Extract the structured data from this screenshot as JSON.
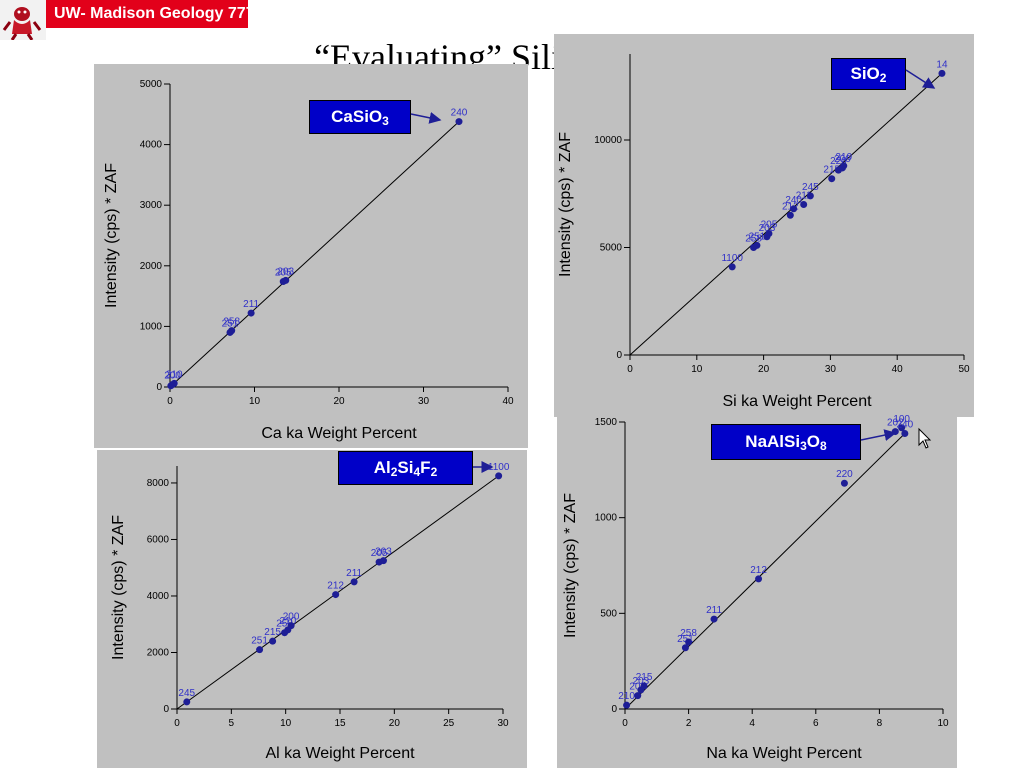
{
  "header": {
    "banner_text": "UW- Madison Geology  777",
    "logo_icon": "badger-mascot-icon"
  },
  "title": {
    "open_quote": "“",
    "word": "Evaluating",
    "close_quote": "”",
    "rest": " Silicate Standards"
  },
  "colors": {
    "panel_bg": "#c0c0c0",
    "point": "#1e1e96",
    "label": "#3030c8",
    "box": "#0000c8",
    "banner": "#e2001a"
  },
  "compounds": {
    "casio3": {
      "base": "CaSiO",
      "sub1": "3"
    },
    "sio2": {
      "base": "SiO",
      "sub1": "2"
    },
    "al2si4f2": {
      "p1": "Al",
      "s1": "2",
      "p2": "Si",
      "s2": "4",
      "p3": "F",
      "s3": "2"
    },
    "naalsi3o8": {
      "p1": "NaAlSi",
      "s1": "3",
      "p2": "O",
      "s2": "8"
    }
  },
  "chart_data": [
    {
      "type": "scatter",
      "title": "",
      "xlabel": "Ca ka Weight Percent",
      "ylabel": "Intensity (cps) * ZAF",
      "xlim": [
        0,
        40
      ],
      "ylim": [
        0,
        5000
      ],
      "xticks": [
        0,
        10,
        20,
        30,
        40
      ],
      "yticks": [
        0,
        1000,
        2000,
        3000,
        4000,
        5000
      ],
      "fit_line": [
        [
          0,
          0
        ],
        [
          34.2,
          4380
        ]
      ],
      "points": [
        {
          "x": 0.1,
          "y": 20,
          "label": ""
        },
        {
          "x": 0.3,
          "y": 40,
          "label": "200"
        },
        {
          "x": 0.5,
          "y": 60,
          "label": "210"
        },
        {
          "x": 7.1,
          "y": 900,
          "label": "251"
        },
        {
          "x": 7.3,
          "y": 930,
          "label": "258"
        },
        {
          "x": 9.6,
          "y": 1220,
          "label": "211"
        },
        {
          "x": 13.4,
          "y": 1740,
          "label": "205"
        },
        {
          "x": 13.7,
          "y": 1760,
          "label": "203"
        },
        {
          "x": 34.2,
          "y": 4380,
          "label": "240"
        }
      ]
    },
    {
      "type": "scatter",
      "title": "",
      "xlabel": "Si ka Weight Percent",
      "ylabel": "Intensity (cps) * ZAF",
      "xlim": [
        0,
        50
      ],
      "ylim": [
        0,
        14000
      ],
      "xticks": [
        0,
        10,
        20,
        30,
        40,
        50
      ],
      "yticks": [
        0,
        5000,
        10000
      ],
      "fit_line": [
        [
          0,
          0
        ],
        [
          46.7,
          13100
        ]
      ],
      "points": [
        {
          "x": 15.3,
          "y": 4100,
          "label": "1100"
        },
        {
          "x": 18.5,
          "y": 5000,
          "label": "258"
        },
        {
          "x": 19.0,
          "y": 5100,
          "label": "251"
        },
        {
          "x": 20.5,
          "y": 5500,
          "label": "203"
        },
        {
          "x": 20.8,
          "y": 5650,
          "label": "205"
        },
        {
          "x": 24.0,
          "y": 6500,
          "label": "212"
        },
        {
          "x": 24.5,
          "y": 6800,
          "label": "240"
        },
        {
          "x": 26.0,
          "y": 7000,
          "label": "211"
        },
        {
          "x": 27.0,
          "y": 7400,
          "label": "245"
        },
        {
          "x": 30.2,
          "y": 8200,
          "label": "215"
        },
        {
          "x": 31.2,
          "y": 8600,
          "label": "220"
        },
        {
          "x": 31.8,
          "y": 8700,
          "label": "200"
        },
        {
          "x": 32.0,
          "y": 8800,
          "label": "210"
        },
        {
          "x": 46.7,
          "y": 13100,
          "label": "14"
        }
      ]
    },
    {
      "type": "scatter",
      "title": "",
      "xlabel": "Al ka Weight Percent",
      "ylabel": "Intensity (cps) * ZAF",
      "xlim": [
        0,
        30
      ],
      "ylim": [
        0,
        8600
      ],
      "xticks": [
        0,
        5,
        10,
        15,
        20,
        25,
        30
      ],
      "yticks": [
        0,
        2000,
        4000,
        6000,
        8000
      ],
      "fit_line": [
        [
          0,
          0
        ],
        [
          29.6,
          8250
        ]
      ],
      "points": [
        {
          "x": 0.9,
          "y": 250,
          "label": "245"
        },
        {
          "x": 7.6,
          "y": 2100,
          "label": "251"
        },
        {
          "x": 8.8,
          "y": 2400,
          "label": "215"
        },
        {
          "x": 9.9,
          "y": 2700,
          "label": "258"
        },
        {
          "x": 10.2,
          "y": 2800,
          "label": "210"
        },
        {
          "x": 10.5,
          "y": 2950,
          "label": "200"
        },
        {
          "x": 14.6,
          "y": 4050,
          "label": "212"
        },
        {
          "x": 16.3,
          "y": 4500,
          "label": "211"
        },
        {
          "x": 18.6,
          "y": 5200,
          "label": "205"
        },
        {
          "x": 19.0,
          "y": 5250,
          "label": "203"
        },
        {
          "x": 29.6,
          "y": 8250,
          "label": "1100"
        }
      ]
    },
    {
      "type": "scatter",
      "title": "",
      "xlabel": "Na ka Weight Percent",
      "ylabel": "Intensity (cps) * ZAF",
      "xlim": [
        0,
        10
      ],
      "ylim": [
        0,
        1500
      ],
      "xticks": [
        0,
        2,
        4,
        6,
        8,
        10
      ],
      "yticks": [
        0,
        500,
        1000,
        1500
      ],
      "fit_line": [
        [
          0,
          0
        ],
        [
          8.8,
          1440
        ]
      ],
      "points": [
        {
          "x": 0.05,
          "y": 20,
          "label": "210"
        },
        {
          "x": 0.4,
          "y": 70,
          "label": "205"
        },
        {
          "x": 0.5,
          "y": 100,
          "label": "203"
        },
        {
          "x": 0.6,
          "y": 120,
          "label": "215"
        },
        {
          "x": 1.9,
          "y": 320,
          "label": "251"
        },
        {
          "x": 2.0,
          "y": 350,
          "label": "258"
        },
        {
          "x": 2.8,
          "y": 470,
          "label": "211"
        },
        {
          "x": 4.2,
          "y": 680,
          "label": "212"
        },
        {
          "x": 6.9,
          "y": 1180,
          "label": "220"
        },
        {
          "x": 8.5,
          "y": 1450,
          "label": "202"
        },
        {
          "x": 8.7,
          "y": 1470,
          "label": "100"
        },
        {
          "x": 8.8,
          "y": 1440,
          "label": "240"
        }
      ]
    }
  ]
}
